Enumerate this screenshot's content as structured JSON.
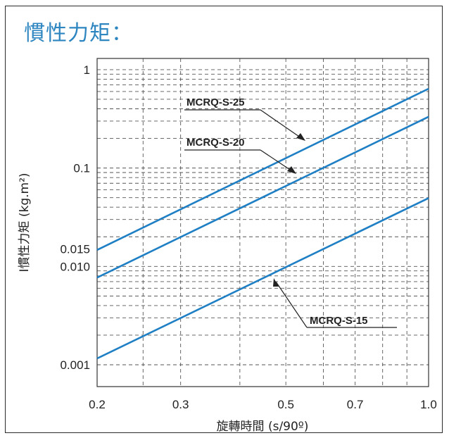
{
  "chart_data": {
    "type": "line",
    "title": "慣性力矩：",
    "xlabel": "旋轉時間 (s/90º)",
    "ylabel": "I慣性力矩 (kg.m²)",
    "x_ticks": [
      0.2,
      0.3,
      0.5,
      0.7,
      1.0
    ],
    "x_tick_labels": [
      "0.2",
      "0.3",
      "0.5",
      "0.7",
      "1.0"
    ],
    "y_ticks": [
      0.001,
      0.01,
      0.015,
      0.1,
      1
    ],
    "y_tick_labels": [
      "0.001",
      "0.010",
      "0.015",
      "0.1",
      "1"
    ],
    "xlim": [
      0.2,
      1.0
    ],
    "ylim": [
      0.0006,
      1.3
    ],
    "x_scale": "log",
    "y_scale": "log",
    "grid": true,
    "series": [
      {
        "name": "MCRQ-S-25",
        "x": [
          0.2,
          1.0
        ],
        "y": [
          0.0147,
          0.64
        ],
        "color": "#1f7fc4"
      },
      {
        "name": "MCRQ-S-20",
        "x": [
          0.2,
          1.0
        ],
        "y": [
          0.0077,
          0.332
        ],
        "color": "#1f7fc4"
      },
      {
        "name": "MCRQ-S-15",
        "x": [
          0.2,
          1.0
        ],
        "y": [
          0.00116,
          0.0495
        ],
        "color": "#1f7fc4"
      }
    ]
  }
}
